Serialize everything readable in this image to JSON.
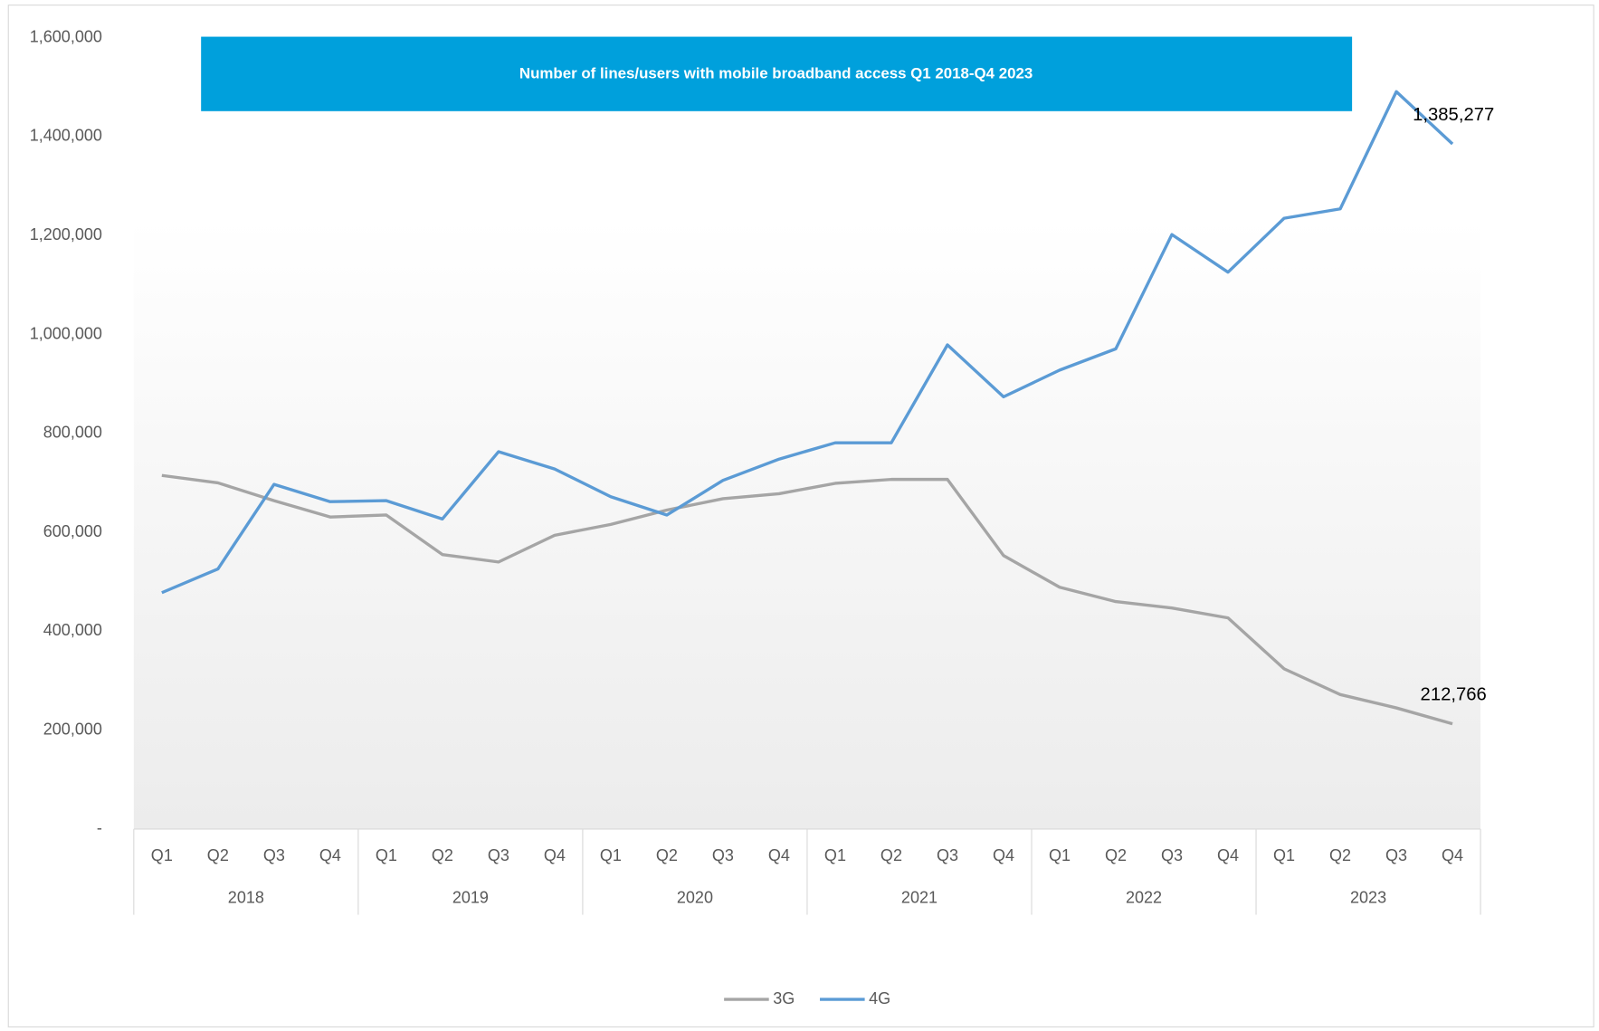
{
  "chart_data": {
    "type": "line",
    "title": "Number of lines/users with mobile broadband access Q1 2018-Q4 2023",
    "categories": [
      "Q1",
      "Q2",
      "Q3",
      "Q4",
      "Q1",
      "Q2",
      "Q3",
      "Q4",
      "Q1",
      "Q2",
      "Q3",
      "Q4",
      "Q1",
      "Q2",
      "Q3",
      "Q4",
      "Q1",
      "Q2",
      "Q3",
      "Q4",
      "Q1",
      "Q2",
      "Q3",
      "Q4"
    ],
    "years": [
      "2018",
      "2019",
      "2020",
      "2021",
      "2022",
      "2023"
    ],
    "series": [
      {
        "name": "3G",
        "color": "#a5a5a5",
        "values": [
          715000,
          700000,
          664000,
          631000,
          635000,
          555000,
          540000,
          594000,
          616000,
          645000,
          668000,
          678000,
          699000,
          707000,
          707000,
          553000,
          489000,
          460000,
          447000,
          427000,
          324000,
          272000,
          245000,
          212766
        ],
        "value_labels": [
          null,
          null,
          null,
          null,
          null,
          null,
          null,
          null,
          null,
          null,
          null,
          null,
          null,
          null,
          null,
          null,
          null,
          null,
          null,
          null,
          null,
          null,
          null,
          "212,766"
        ]
      },
      {
        "name": "4G",
        "color": "#5b9bd5",
        "values": [
          478000,
          526000,
          697000,
          662000,
          664000,
          627000,
          763000,
          728000,
          672000,
          635000,
          705000,
          748000,
          781000,
          781000,
          979000,
          874000,
          928000,
          971000,
          1202000,
          1126000,
          1235000,
          1254000,
          1491000,
          1385277
        ],
        "value_labels": [
          null,
          null,
          null,
          null,
          null,
          null,
          null,
          null,
          null,
          null,
          null,
          null,
          null,
          null,
          null,
          null,
          null,
          null,
          null,
          null,
          null,
          null,
          null,
          "1,385,277"
        ]
      }
    ],
    "ylim": [
      0,
      1600000
    ],
    "yticks": [
      {
        "value": 0,
        "label": "-"
      },
      {
        "value": 200000,
        "label": "200,000"
      },
      {
        "value": 400000,
        "label": "400,000"
      },
      {
        "value": 600000,
        "label": "600,000"
      },
      {
        "value": 800000,
        "label": "800,000"
      },
      {
        "value": 1000000,
        "label": "1,000,000"
      },
      {
        "value": 1200000,
        "label": "1,200,000"
      },
      {
        "value": 1400000,
        "label": "1,400,000"
      },
      {
        "value": 1600000,
        "label": "1,600,000"
      }
    ],
    "title_color": "#00a0dc",
    "legend": "bottom"
  }
}
